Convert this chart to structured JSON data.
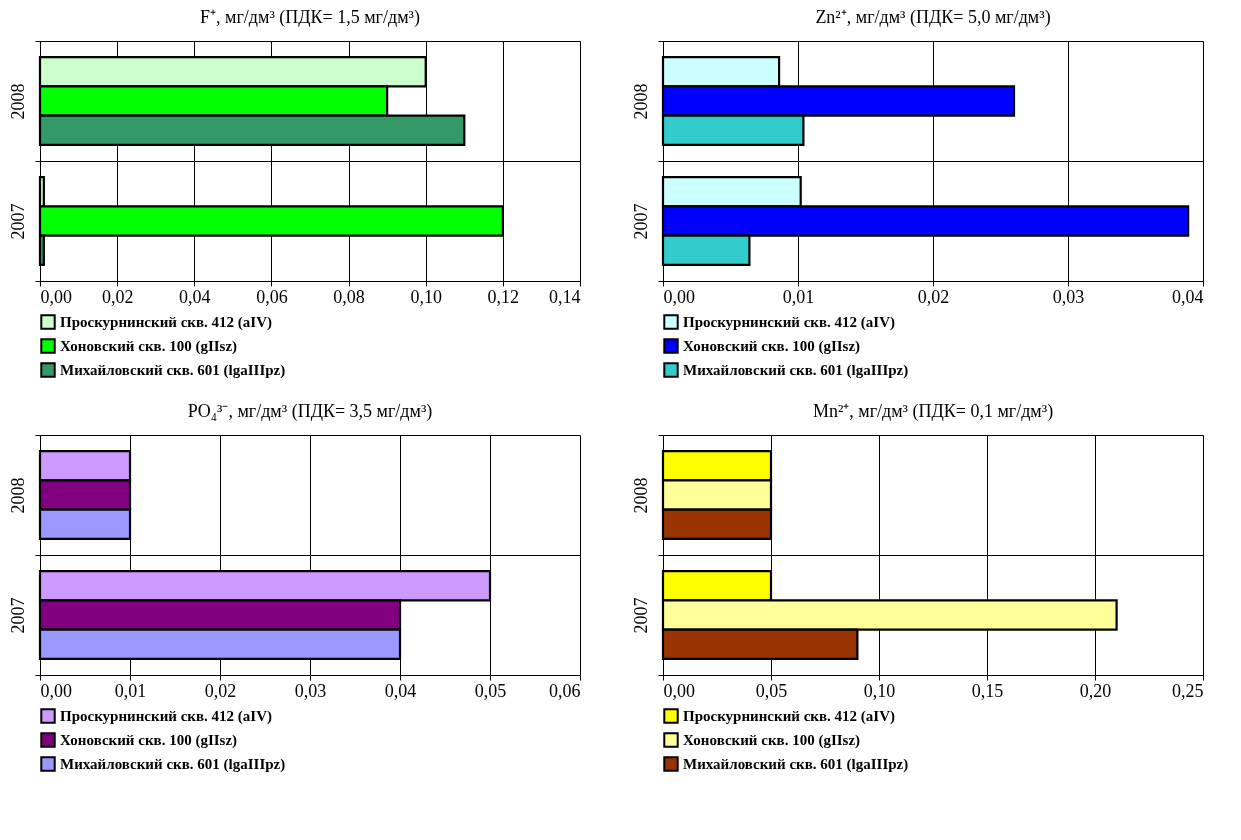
{
  "chart_data": [
    {
      "type": "bar",
      "orientation": "horizontal",
      "title": "F⁺, мг/дм³ (ПДК= 1,5 мг/дм³)",
      "categories": [
        "2008",
        "2007"
      ],
      "series": [
        {
          "name": "Проскурнинский скв. 412 (aIV)",
          "color": "#ccffcc",
          "values": [
            0.1,
            0.001
          ]
        },
        {
          "name": "Хоновский скв. 100 (gIIsz)",
          "color": "#00ff00",
          "values": [
            0.09,
            0.12
          ]
        },
        {
          "name": "Михайловский скв. 601 (lgaIIIpz)",
          "color": "#339966",
          "values": [
            0.11,
            0.001
          ]
        }
      ],
      "xlim": [
        0,
        0.14
      ],
      "xticks": [
        {
          "value": 0,
          "label": "0,00"
        },
        {
          "value": 0.02,
          "label": "0,02"
        },
        {
          "value": 0.04,
          "label": "0,04"
        },
        {
          "value": 0.06,
          "label": "0,06"
        },
        {
          "value": 0.08,
          "label": "0,08"
        },
        {
          "value": 0.1,
          "label": "0,10"
        },
        {
          "value": 0.12,
          "label": "0,12"
        },
        {
          "value": 0.14,
          "label": "0,14"
        }
      ],
      "grid": true,
      "legend": "bottom"
    },
    {
      "type": "bar",
      "orientation": "horizontal",
      "title": "Zn²⁺, мг/дм³ (ПДК= 5,0 мг/дм³)",
      "categories": [
        "2008",
        "2007"
      ],
      "series": [
        {
          "name": "Проскурнинский скв. 412 (aIV)",
          "color": "#ccffff",
          "values": [
            0.0086,
            0.0102
          ]
        },
        {
          "name": "Хоновский скв. 100 (gIIsz)",
          "color": "#0000ff",
          "values": [
            0.026,
            0.0389
          ]
        },
        {
          "name": "Михайловский скв. 601 (lgaIIIpz)",
          "color": "#33cccc",
          "values": [
            0.0104,
            0.0064
          ]
        }
      ],
      "xlim": [
        0,
        0.04
      ],
      "xticks": [
        {
          "value": 0,
          "label": "0,00"
        },
        {
          "value": 0.01,
          "label": "0,01"
        },
        {
          "value": 0.02,
          "label": "0,02"
        },
        {
          "value": 0.03,
          "label": "0,03"
        },
        {
          "value": 0.04,
          "label": "0,04"
        }
      ],
      "grid": true,
      "legend": "bottom"
    },
    {
      "type": "bar",
      "orientation": "horizontal",
      "title": "PO₄³⁻, мг/дм³ (ПДК= 3,5 мг/дм³)",
      "categories": [
        "2008",
        "2007"
      ],
      "series": [
        {
          "name": "Проскурнинский скв. 412 (aIV)",
          "color": "#cc99ff",
          "values": [
            0.01,
            0.05
          ]
        },
        {
          "name": "Хоновский скв. 100 (gIIsz)",
          "color": "#800080",
          "values": [
            0.01,
            0.04
          ]
        },
        {
          "name": "Михайловский скв. 601 (lgaIIIpz)",
          "color": "#9999ff",
          "values": [
            0.01,
            0.04
          ]
        }
      ],
      "xlim": [
        0,
        0.06
      ],
      "xticks": [
        {
          "value": 0,
          "label": "0,00"
        },
        {
          "value": 0.01,
          "label": "0,01"
        },
        {
          "value": 0.02,
          "label": "0,02"
        },
        {
          "value": 0.03,
          "label": "0,03"
        },
        {
          "value": 0.04,
          "label": "0,04"
        },
        {
          "value": 0.05,
          "label": "0,05"
        },
        {
          "value": 0.06,
          "label": "0,06"
        }
      ],
      "grid": true,
      "legend": "bottom"
    },
    {
      "type": "bar",
      "orientation": "horizontal",
      "title": "Mn²⁺, мг/дм³ (ПДК= 0,1 мг/дм³)",
      "categories": [
        "2008",
        "2007"
      ],
      "series": [
        {
          "name": "Проскурнинский скв. 412 (aIV)",
          "color": "#ffff00",
          "values": [
            0.05,
            0.05
          ]
        },
        {
          "name": "Хоновский скв. 100 (gIIsz)",
          "color": "#ffff99",
          "values": [
            0.05,
            0.21
          ]
        },
        {
          "name": "Михайловский скв. 601 (lgaIIIpz)",
          "color": "#993300",
          "values": [
            0.05,
            0.09
          ]
        }
      ],
      "xlim": [
        0,
        0.25
      ],
      "xticks": [
        {
          "value": 0,
          "label": "0,00"
        },
        {
          "value": 0.05,
          "label": "0,05"
        },
        {
          "value": 0.1,
          "label": "0,10"
        },
        {
          "value": 0.15,
          "label": "0,15"
        },
        {
          "value": 0.2,
          "label": "0,20"
        },
        {
          "value": 0.25,
          "label": "0,25"
        }
      ],
      "grid": true,
      "legend": "bottom"
    }
  ]
}
